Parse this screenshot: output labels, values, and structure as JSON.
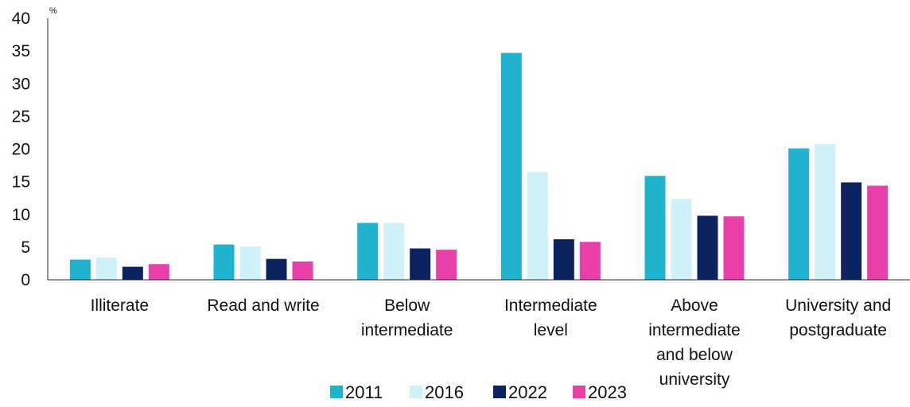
{
  "chart_data": {
    "type": "bar",
    "unit": "%",
    "ylim": [
      0,
      40
    ],
    "yticks": [
      "0",
      "5",
      "10",
      "15",
      "20",
      "25",
      "30",
      "35",
      "40"
    ],
    "grid": false,
    "legend_position": "bottom",
    "categories": [
      [
        "Illiterate"
      ],
      [
        "Read and write"
      ],
      [
        "Below",
        "intermediate"
      ],
      [
        "Intermediate",
        "level"
      ],
      [
        "Above",
        "intermediate",
        "and below",
        "university"
      ],
      [
        "University and",
        "postgraduate"
      ]
    ],
    "series": [
      {
        "name": "2011",
        "color": "#20b3cf",
        "values": [
          3.1,
          5.4,
          8.7,
          34.7,
          15.9,
          20.1
        ]
      },
      {
        "name": "2016",
        "color": "#cff2f8",
        "values": [
          3.4,
          5.1,
          8.7,
          16.5,
          12.4,
          20.8
        ]
      },
      {
        "name": "2022",
        "color": "#0b2461",
        "values": [
          2.0,
          3.2,
          4.8,
          6.2,
          9.8,
          14.9
        ]
      },
      {
        "name": "2023",
        "color": "#e83fa9",
        "values": [
          2.4,
          2.8,
          4.6,
          5.8,
          9.7,
          14.4
        ]
      }
    ]
  }
}
